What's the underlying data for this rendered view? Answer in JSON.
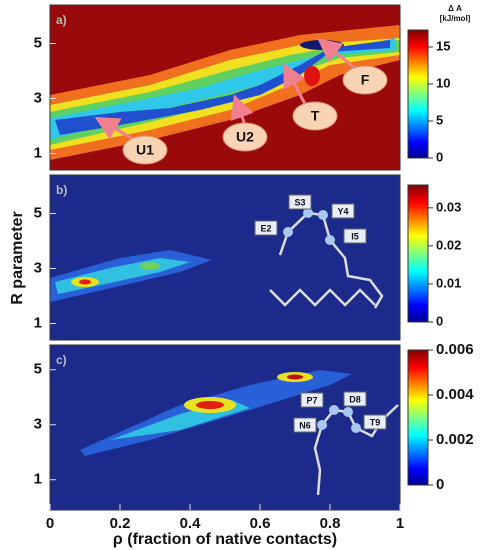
{
  "chart_data": [
    {
      "type": "contour",
      "panel_label": "a)",
      "ylim": [
        0.4,
        6.4
      ],
      "yticks": [
        1,
        3,
        5
      ],
      "colorbar": {
        "title": [
          "Δ A",
          "[kJ/mol]"
        ],
        "lim": [
          0,
          17.3
        ],
        "ticks": [
          0,
          5,
          10,
          15
        ]
      },
      "annotations": [
        "U1",
        "U2",
        "T",
        "F"
      ]
    },
    {
      "type": "contour",
      "panel_label": "b)",
      "ylabel": "R parameter",
      "ylim": [
        0.4,
        6.4
      ],
      "yticks": [
        1,
        3,
        5
      ],
      "colorbar": {
        "lim": [
          0,
          0.036
        ],
        "ticks": [
          0.01,
          0.02,
          0.03,
          0
        ]
      },
      "annotations": [
        "E2",
        "S3",
        "Y4",
        "I5"
      ]
    },
    {
      "type": "contour",
      "panel_label": "c)",
      "xlabel": "ρ (fraction of native contacts)",
      "xlim": [
        0,
        1
      ],
      "xticks": [
        0,
        0.2,
        0.4,
        0.6,
        0.8,
        1
      ],
      "ylim": [
        -0.1,
        5.9
      ],
      "yticks": [
        1,
        3,
        5
      ],
      "colorbar": {
        "lim": [
          0,
          0.006
        ],
        "ticks": [
          0,
          0.002,
          0.004,
          0.006
        ]
      },
      "annotations": [
        "N6",
        "P7",
        "D8",
        "T9"
      ]
    }
  ]
}
